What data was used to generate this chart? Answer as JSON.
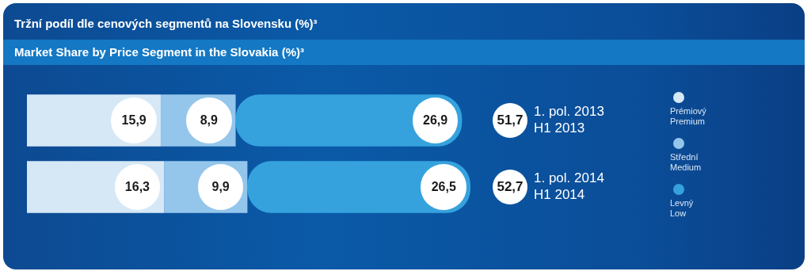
{
  "chart_data": {
    "type": "bar",
    "orientation": "horizontal",
    "stacked": true,
    "title": "Tržní podíl dle cenových segmentů na Slovensku (%)³",
    "subtitle": "Market Share by Price Segment in the Slovakia (%)³",
    "categories": [
      "1. pol. 2013\nH1 2013",
      "1. pol. 2014\nH1 2014"
    ],
    "series": [
      {
        "name": "Prémiový\nPremium",
        "color": "#d6e8f6",
        "values": [
          15.9,
          16.3
        ],
        "value_labels": [
          "15,9",
          "16,3"
        ]
      },
      {
        "name": "Střední\nMedium",
        "color": "#94c6ec",
        "values": [
          8.9,
          9.9
        ],
        "value_labels": [
          "8,9",
          "9,9"
        ]
      },
      {
        "name": "Levný\nLow",
        "color": "#35a2dd",
        "values": [
          26.9,
          26.5
        ],
        "value_labels": [
          "26,9",
          "26,5"
        ]
      }
    ],
    "totals": [
      "51,7",
      "52,7"
    ],
    "legend": "right"
  }
}
